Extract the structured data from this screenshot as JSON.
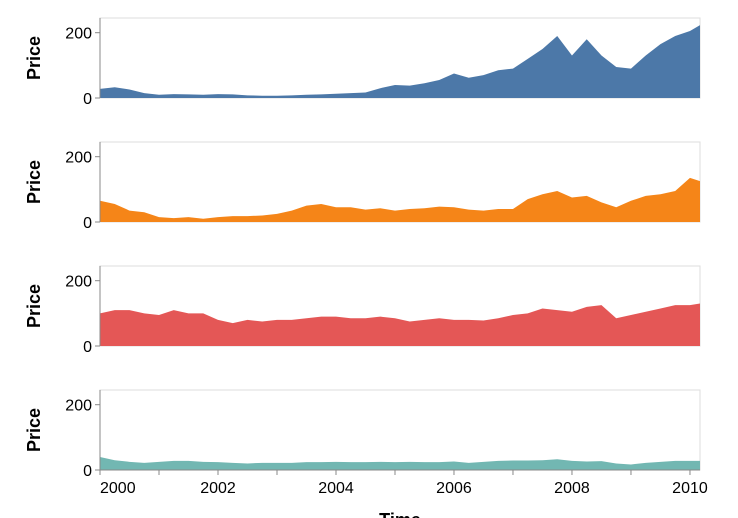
{
  "chart_data": {
    "type": "area",
    "xlabel": "Time",
    "ylabel": "Price",
    "x": [
      2000,
      2000.25,
      2000.5,
      2000.75,
      2001,
      2001.25,
      2001.5,
      2001.75,
      2002,
      2002.25,
      2002.5,
      2002.75,
      2003,
      2003.25,
      2003.5,
      2003.75,
      2004,
      2004.25,
      2004.5,
      2004.75,
      2005,
      2005.25,
      2005.5,
      2005.75,
      2006,
      2006.25,
      2006.5,
      2006.75,
      2007,
      2007.25,
      2007.5,
      2007.75,
      2008,
      2008.25,
      2008.5,
      2008.75,
      2009,
      2009.25,
      2009.5,
      2009.75,
      2010,
      2010.17
    ],
    "xlim": [
      2000,
      2010.17
    ],
    "xticks": [
      2000,
      2002,
      2004,
      2006,
      2008,
      2010
    ],
    "xminorticks": [
      2001,
      2003,
      2005,
      2007,
      2009
    ],
    "ylim": [
      0,
      245
    ],
    "yticks": [
      0,
      200
    ],
    "series": [
      {
        "color": "#4c78a8",
        "values": [
          28,
          33,
          26,
          15,
          10,
          12,
          11,
          10,
          12,
          11,
          8,
          7,
          7,
          8,
          10,
          11,
          13,
          15,
          17,
          30,
          40,
          38,
          45,
          55,
          75,
          62,
          70,
          85,
          90,
          120,
          150,
          190,
          130,
          180,
          130,
          95,
          90,
          130,
          165,
          190,
          205,
          223
        ]
      },
      {
        "color": "#f58518",
        "values": [
          65,
          55,
          35,
          30,
          15,
          12,
          15,
          10,
          15,
          18,
          18,
          20,
          25,
          35,
          50,
          55,
          45,
          45,
          38,
          42,
          35,
          40,
          42,
          47,
          45,
          38,
          35,
          40,
          40,
          70,
          85,
          95,
          75,
          80,
          60,
          45,
          65,
          80,
          85,
          95,
          135,
          125
        ]
      },
      {
        "color": "#e45756",
        "values": [
          100,
          110,
          110,
          100,
          95,
          110,
          100,
          100,
          80,
          70,
          80,
          75,
          80,
          80,
          85,
          90,
          90,
          85,
          85,
          90,
          85,
          75,
          80,
          85,
          80,
          80,
          78,
          85,
          95,
          100,
          115,
          110,
          105,
          120,
          125,
          85,
          95,
          105,
          115,
          125,
          125,
          130
        ]
      },
      {
        "color": "#72b7b2",
        "values": [
          40,
          30,
          25,
          22,
          25,
          28,
          28,
          25,
          24,
          22,
          20,
          22,
          22,
          22,
          24,
          24,
          25,
          24,
          24,
          25,
          24,
          25,
          24,
          24,
          26,
          22,
          25,
          28,
          29,
          29,
          30,
          33,
          28,
          26,
          27,
          20,
          17,
          22,
          25,
          28,
          28,
          28
        ]
      }
    ]
  }
}
